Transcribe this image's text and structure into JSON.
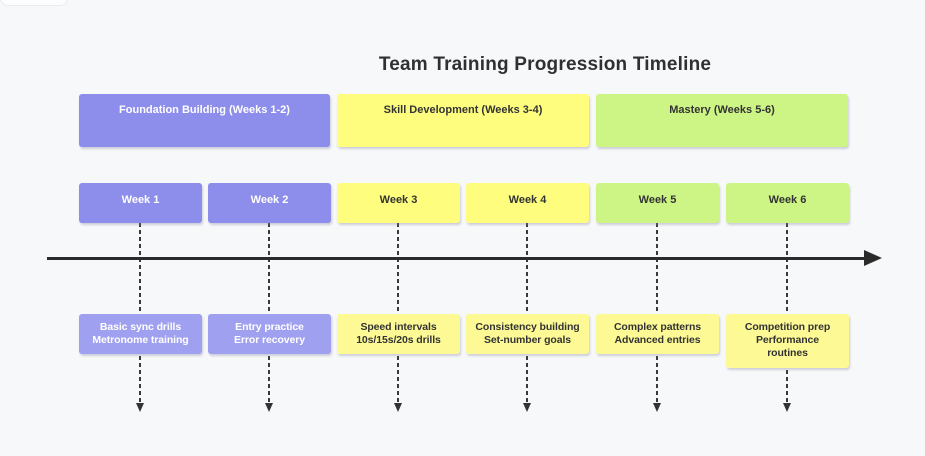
{
  "background": "#f7f8fa",
  "title": "Team Training Progression Timeline",
  "title_color": "#303030",
  "axis": {
    "color": "#2b2b2b"
  },
  "connector": {
    "color": "#3a3a3a"
  },
  "phases": [
    {
      "label": "Foundation Building (Weeks 1-2)",
      "bg": "#8d8dec",
      "fg": "#ffffff"
    },
    {
      "label": "Skill Development (Weeks 3-4)",
      "bg": "#fffd7e",
      "fg": "#333333"
    },
    {
      "label": "Mastery (Weeks 5-6)",
      "bg": "#cdf586",
      "fg": "#333333"
    }
  ],
  "weeks": [
    {
      "label": "Week 1",
      "bg": "#8d8dec",
      "fg": "#ffffff"
    },
    {
      "label": "Week 2",
      "bg": "#8d8dec",
      "fg": "#ffffff"
    },
    {
      "label": "Week 3",
      "bg": "#fffd7e",
      "fg": "#333333"
    },
    {
      "label": "Week 4",
      "bg": "#fffd7e",
      "fg": "#333333"
    },
    {
      "label": "Week 5",
      "bg": "#cdf586",
      "fg": "#333333"
    },
    {
      "label": "Week 6",
      "bg": "#cdf586",
      "fg": "#333333"
    }
  ],
  "details": [
    {
      "lines": [
        "Basic sync drills",
        "Metronome training"
      ],
      "bg": "#a0a0f0",
      "fg": "#ffffff"
    },
    {
      "lines": [
        "Entry practice",
        "Error recovery"
      ],
      "bg": "#a0a0f0",
      "fg": "#ffffff"
    },
    {
      "lines": [
        "Speed intervals",
        "10s/15s/20s drills"
      ],
      "bg": "#fdfa96",
      "fg": "#333333"
    },
    {
      "lines": [
        "Consistency building",
        "Set-number goals"
      ],
      "bg": "#fdfa96",
      "fg": "#333333"
    },
    {
      "lines": [
        "Complex patterns",
        "Advanced entries"
      ],
      "bg": "#fdfa96",
      "fg": "#333333"
    },
    {
      "lines": [
        "Competition prep",
        "Performance",
        "routines"
      ],
      "bg": "#fdfa96",
      "fg": "#333333"
    }
  ]
}
